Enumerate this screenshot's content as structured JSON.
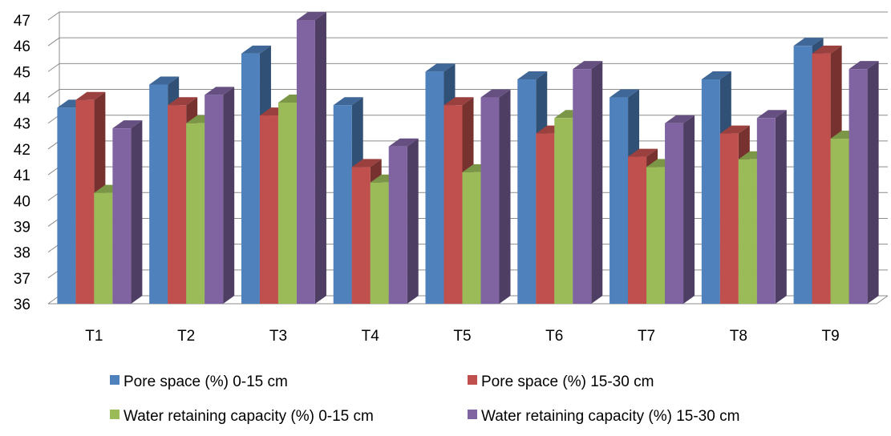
{
  "chart_data": {
    "type": "bar",
    "style": "3d-clustered-column",
    "categories": [
      "T1",
      "T2",
      "T3",
      "T4",
      "T5",
      "T6",
      "T7",
      "T8",
      "T9"
    ],
    "series": [
      {
        "name": "Pore space (%) 0-15 cm",
        "color": "#4f81bd",
        "values": [
          43.6,
          44.5,
          45.7,
          43.7,
          45.0,
          44.7,
          44.0,
          44.7,
          46.0
        ]
      },
      {
        "name": "Pore space (%) 15-30 cm",
        "color": "#c0504d",
        "values": [
          43.9,
          43.7,
          43.3,
          41.3,
          43.7,
          42.6,
          41.7,
          42.6,
          45.7
        ]
      },
      {
        "name": "Water retaining capacity (%) 0-15 cm",
        "color": "#9bbb59",
        "values": [
          40.3,
          43.0,
          43.8,
          40.7,
          41.1,
          43.2,
          41.3,
          41.6,
          42.4
        ]
      },
      {
        "name": "Water retaining capacity (%) 15-30 cm",
        "color": "#8064a2",
        "values": [
          42.8,
          44.1,
          47.0,
          42.1,
          44.0,
          45.1,
          43.0,
          43.2,
          45.1
        ]
      }
    ],
    "y_ticks": [
      "36",
      "37",
      "38",
      "39",
      "40",
      "41",
      "42",
      "43",
      "44",
      "45",
      "46",
      "47"
    ],
    "ylim": [
      36,
      47
    ],
    "grid": true,
    "legend_position": "bottom",
    "title": "",
    "xlabel": "",
    "ylabel": ""
  }
}
